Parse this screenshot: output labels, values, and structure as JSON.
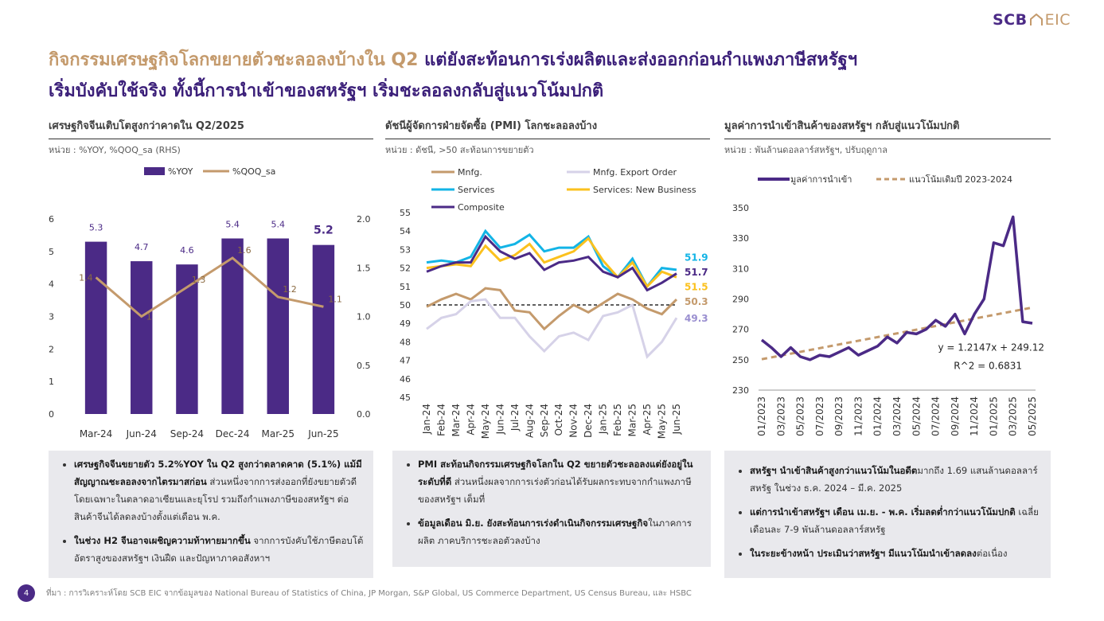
{
  "brand": {
    "logo_left": "SCB",
    "logo_right": "EIC"
  },
  "title": {
    "part1": "กิจกรรมเศรษฐกิจโลกขยายตัวชะลอลงบ้างใน Q2",
    "part2": " แต่ยังสะท้อนการเร่งผลิตและส่งออกก่อนกำแพงภาษีสหรัฐฯ",
    "line2": "เริ่มบังคับใช้จริง ทั้งนี้การนำเข้าของสหรัฐฯ เริ่มชะลอลงกลับสู่แนวโน้มปกติ"
  },
  "panels": [
    {
      "heading": "เศรษฐกิจจีนเติบโตสูงกว่าคาดใน Q2/2025",
      "unit": "หน่วย : %YOY, %QOQ_sa (RHS)"
    },
    {
      "heading": "ดัชนีผู้จัดการฝ่ายจัดซื้อ (PMI) โลกชะลอลงบ้าง",
      "unit": "หน่วย : ดัชนี, >50 สะท้อนการขยายตัว"
    },
    {
      "heading": "มูลค่าการนำเข้าสินค้าของสหรัฐฯ กลับสู่แนวโน้มปกติ",
      "unit": "หน่วย : พันล้านดอลลาร์สหรัฐฯ, ปรับฤดูกาล"
    }
  ],
  "chart_data": [
    {
      "type": "bar",
      "categories": [
        "Mar-24",
        "Jun-24",
        "Sep-24",
        "Dec-24",
        "Mar-25",
        "Jun-25"
      ],
      "series": [
        {
          "name": "%YOY",
          "type": "bar",
          "axis": "left",
          "color": "#4b2a86",
          "values": [
            5.3,
            4.7,
            4.6,
            5.4,
            5.4,
            5.2
          ],
          "labels": [
            "5.3",
            "4.7",
            "4.6",
            "5.4",
            "5.4",
            "5.2"
          ]
        },
        {
          "name": "%QOQ_sa",
          "type": "line",
          "axis": "right",
          "color": "#c49a6c",
          "values": [
            1.4,
            1.0,
            1.3,
            1.6,
            1.2,
            1.1
          ],
          "labels": [
            "1.4",
            "1",
            "1.3",
            "1.6",
            "1.2",
            "1.1"
          ]
        }
      ],
      "ylim": [
        0,
        6
      ],
      "yticks": [
        "0",
        "1",
        "2",
        "3",
        "4",
        "5",
        "6"
      ],
      "y2lim": [
        0,
        2.0
      ],
      "y2ticks": [
        "0.0",
        "0.5",
        "1.0",
        "1.5",
        "2.0"
      ],
      "legend": "top"
    },
    {
      "type": "line",
      "categories": [
        "Jan-24",
        "Feb-24",
        "Mar-24",
        "Apr-24",
        "May-24",
        "Jun-24",
        "Jul-24",
        "Aug-24",
        "Sep-24",
        "Oct-24",
        "Nov-24",
        "Dec-24",
        "Jan-25",
        "Feb-25",
        "Mar-25",
        "Apr-25",
        "May-25",
        "Jun-25"
      ],
      "series": [
        {
          "name": "Mnfg.",
          "color": "#c49a6c",
          "end_label": "50.3",
          "values": [
            49.9,
            50.3,
            50.6,
            50.3,
            50.9,
            50.8,
            49.7,
            49.6,
            48.7,
            49.4,
            50.0,
            49.6,
            50.1,
            50.6,
            50.3,
            49.8,
            49.5,
            50.3
          ]
        },
        {
          "name": "Mnfg. Export Order",
          "color": "#d6d2e8",
          "end_label": "49.3",
          "values": [
            48.7,
            49.3,
            49.5,
            50.2,
            50.3,
            49.3,
            49.3,
            48.3,
            47.5,
            48.3,
            48.5,
            48.1,
            49.4,
            49.6,
            50.0,
            47.2,
            48.0,
            49.3
          ]
        },
        {
          "name": "Services",
          "color": "#13b4e6",
          "end_label": "51.9",
          "values": [
            52.3,
            52.4,
            52.3,
            52.6,
            54.0,
            53.1,
            53.3,
            53.8,
            52.9,
            53.1,
            53.1,
            53.7,
            52.1,
            51.5,
            52.5,
            51.0,
            52.0,
            51.9
          ]
        },
        {
          "name": "Services: New Business",
          "color": "#fbc11e",
          "end_label": "51.5",
          "values": [
            52.0,
            52.1,
            52.2,
            52.1,
            53.2,
            52.4,
            52.7,
            53.3,
            52.3,
            52.6,
            52.9,
            53.6,
            52.4,
            51.5,
            52.3,
            51.0,
            51.8,
            51.5
          ]
        },
        {
          "name": "Composite",
          "color": "#4b2a86",
          "end_label": "51.7",
          "values": [
            51.8,
            52.1,
            52.3,
            52.3,
            53.7,
            52.9,
            52.5,
            52.8,
            51.9,
            52.3,
            52.4,
            52.6,
            51.8,
            51.5,
            52.0,
            50.8,
            51.2,
            51.7
          ]
        }
      ],
      "reference_line": 50,
      "ylim": [
        45,
        55
      ],
      "yticks": [
        "45",
        "46",
        "47",
        "48",
        "49",
        "50",
        "51",
        "52",
        "53",
        "54",
        "55"
      ],
      "legend": "top"
    },
    {
      "type": "line",
      "x": [
        "01/2023",
        "02/2023",
        "03/2023",
        "04/2023",
        "05/2023",
        "06/2023",
        "07/2023",
        "08/2023",
        "09/2023",
        "10/2023",
        "11/2023",
        "12/2023",
        "01/2024",
        "02/2024",
        "03/2024",
        "04/2024",
        "05/2024",
        "06/2024",
        "07/2024",
        "08/2024",
        "09/2024",
        "10/2024",
        "11/2024",
        "12/2024",
        "01/2025",
        "02/2025",
        "03/2025",
        "04/2025",
        "05/2025"
      ],
      "xticks": [
        "01/2023",
        "03/2023",
        "05/2023",
        "07/2023",
        "09/2023",
        "11/2023",
        "01/2024",
        "03/2024",
        "05/2024",
        "07/2024",
        "09/2024",
        "11/2024",
        "01/2025",
        "03/2025",
        "05/2025"
      ],
      "series": [
        {
          "name": "มูลค่าการนำเข้า",
          "color": "#4b2a86",
          "values": [
            263,
            258,
            252,
            258,
            252,
            250,
            253,
            252,
            255,
            258,
            253,
            256,
            259,
            265,
            261,
            268,
            267,
            270,
            276,
            272,
            280,
            267,
            280,
            290,
            327,
            325,
            344,
            275,
            274
          ]
        },
        {
          "name": "แนวโน้มเดิมปี 2023-2024",
          "color": "#c49a6c",
          "style": "dashed",
          "intercept": 249.12,
          "slope": 1.2147
        }
      ],
      "annotations": [
        "y = 1.2147x + 249.12",
        "R^2 = 0.6831"
      ],
      "ylim": [
        230,
        350
      ],
      "yticks": [
        "230",
        "250",
        "270",
        "290",
        "310",
        "330",
        "350"
      ],
      "legend": "top"
    }
  ],
  "bullets": {
    "left": [
      {
        "bold": "เศรษฐกิจจีนขยายตัว 5.2%YOY ใน Q2 สูงกว่าตลาดคาด (5.1%) แม้มีสัญญาณชะลอลงจากไตรมาสก่อน",
        "text": " ส่วนหนึ่งจากการส่งออกที่ยังขยายตัวดี โดยเฉพาะในตลาดอาเซียนและยุโรป รวมถึงกำแพงภาษีของสหรัฐฯ ต่อสินค้าจีนได้ลดลงบ้างตั้งแต่เดือน พ.ค."
      },
      {
        "bold": "ในช่วง H2 จีนอาจเผชิญความท้าทายมากขึ้น",
        "text": " จากการบังคับใช้ภาษีตอบโต้อัตราสูงของสหรัฐฯ เงินฝืด และปัญหาภาคอสังหาฯ"
      }
    ],
    "middle": [
      {
        "bold": "PMI สะท้อนกิจกรรมเศรษฐกิจโลกใน Q2 ขยายตัวชะลอลงแต่ยังอยู่ในระดับที่ดี",
        "text": " ส่วนหนึ่งผลจากการเร่งตัวก่อนได้รับผลกระทบจากกำแพงภาษีของสหรัฐฯ เต็มที่"
      },
      {
        "bold": "ข้อมูลเดือน มิ.ย. ยังสะท้อนการเร่งดำเนินกิจกรรมเศรษฐกิจ",
        "text": "ในภาคการผลิต ภาคบริการชะลอตัวลงบ้าง"
      }
    ],
    "right": [
      {
        "bold": "สหรัฐฯ นำเข้าสินค้าสูงกว่าแนวโน้มในอดีต",
        "text": "มากถึง 1.69 แสนล้านดอลลาร์สหรัฐ ในช่วง ธ.ค. 2024 – มี.ค. 2025"
      },
      {
        "bold": "แต่การนำเข้าสหรัฐฯ เดือน เม.ย. - พ.ค. เริ่มลดต่ำกว่าแนวโน้มปกติ",
        "text": " เฉลี่ยเดือนละ 7-9 พันล้านดอลลาร์สหรัฐ"
      },
      {
        "bold": "ในระยะข้างหน้า ประเมินว่าสหรัฐฯ มีแนวโน้มนำเข้าลดลง",
        "text": "ต่อเนื่อง"
      }
    ]
  },
  "footer": {
    "page": "4",
    "source": "ที่มา : การวิเคราะห์โดย SCB EIC จากข้อมูลของ National Bureau of Statistics of China, JP Morgan, S&P Global, US Commerce Department, US Census Bureau, และ HSBC"
  }
}
